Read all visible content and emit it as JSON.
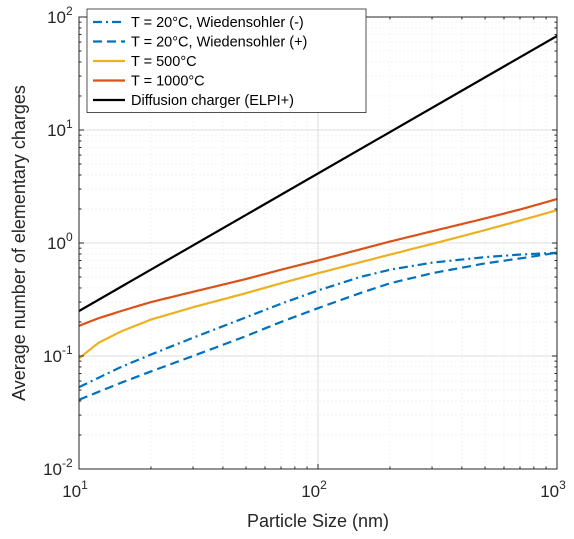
{
  "chart_data": {
    "type": "line",
    "xlabel": "Particle Size (nm)",
    "ylabel": "Average number of elementary charges",
    "xscale": "log",
    "yscale": "log",
    "xlim": [
      10,
      1000
    ],
    "ylim": [
      0.01,
      100
    ],
    "grid": "major and minor",
    "legend_position": "top-left",
    "x_ticks": [
      {
        "base": "10",
        "exp": "1",
        "value": 10
      },
      {
        "base": "10",
        "exp": "2",
        "value": 100
      },
      {
        "base": "10",
        "exp": "3",
        "value": 1000
      }
    ],
    "y_ticks": [
      {
        "base": "10",
        "exp": "-2",
        "value": 0.01
      },
      {
        "base": "10",
        "exp": "-1",
        "value": 0.1
      },
      {
        "base": "10",
        "exp": "0",
        "value": 1
      },
      {
        "base": "10",
        "exp": "1",
        "value": 10
      },
      {
        "base": "10",
        "exp": "2",
        "value": 100
      }
    ],
    "series": [
      {
        "name": "T = 20°C, Wiedensohler (-)",
        "color": "#0072BD",
        "dash": "dashdot",
        "x": [
          10,
          15,
          20,
          30,
          50,
          70,
          100,
          150,
          200,
          300,
          500,
          700,
          1000
        ],
        "y": [
          0.053,
          0.08,
          0.103,
          0.145,
          0.22,
          0.29,
          0.38,
          0.5,
          0.58,
          0.67,
          0.75,
          0.79,
          0.82
        ]
      },
      {
        "name": "T = 20°C, Wiedensohler (+)",
        "color": "#0072BD",
        "dash": "dashed",
        "x": [
          10,
          15,
          20,
          30,
          50,
          70,
          100,
          150,
          200,
          300,
          500,
          700,
          1000
        ],
        "y": [
          0.041,
          0.058,
          0.073,
          0.1,
          0.15,
          0.2,
          0.265,
          0.36,
          0.44,
          0.54,
          0.66,
          0.73,
          0.82
        ]
      },
      {
        "name": "T = 500°C",
        "color": "#EDB120",
        "dash": "solid",
        "x": [
          10,
          12,
          15,
          20,
          30,
          50,
          70,
          100,
          200,
          300,
          500,
          700,
          1000
        ],
        "y": [
          0.095,
          0.13,
          0.165,
          0.21,
          0.27,
          0.36,
          0.44,
          0.54,
          0.79,
          0.98,
          1.3,
          1.58,
          1.95
        ]
      },
      {
        "name": "T = 1000°C",
        "color": "#D95319",
        "dash": "solid",
        "x": [
          10,
          12,
          15,
          20,
          30,
          50,
          70,
          100,
          200,
          300,
          500,
          700,
          1000
        ],
        "y": [
          0.185,
          0.215,
          0.25,
          0.3,
          0.37,
          0.48,
          0.58,
          0.7,
          1.03,
          1.27,
          1.65,
          1.98,
          2.45
        ]
      },
      {
        "name": "Diffusion charger (ELPI+)",
        "color": "#000000",
        "dash": "solid",
        "x": [
          10,
          1000
        ],
        "y": [
          0.25,
          68
        ]
      }
    ]
  }
}
